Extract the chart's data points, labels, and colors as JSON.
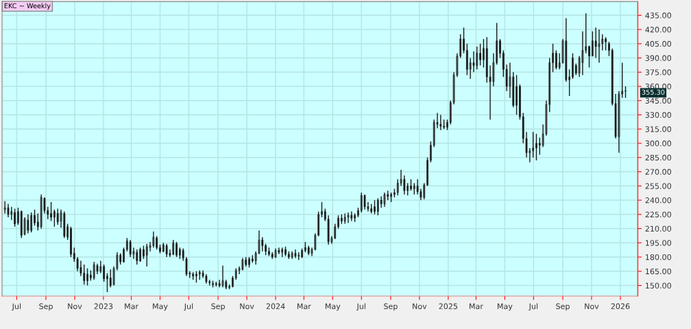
{
  "chart_data": {
    "type": "candlestick",
    "title": "EKC ~ Weekly",
    "x": [
      "2022-06-06",
      "2022-06-13",
      "2022-06-20",
      "2022-06-27",
      "2022-07-04",
      "2022-07-11",
      "2022-07-18",
      "2022-07-25",
      "2022-08-01",
      "2022-08-08",
      "2022-08-15",
      "2022-08-22",
      "2022-08-29",
      "2022-09-05",
      "2022-09-12",
      "2022-09-19",
      "2022-09-26",
      "2022-10-03",
      "2022-10-10",
      "2022-10-17",
      "2022-10-24",
      "2022-10-31",
      "2022-11-07",
      "2022-11-14",
      "2022-11-21",
      "2022-11-28",
      "2022-12-05",
      "2022-12-12",
      "2022-12-19",
      "2022-12-26",
      "2023-01-02",
      "2023-01-09",
      "2023-01-16",
      "2023-01-23",
      "2023-01-30",
      "2023-02-06",
      "2023-02-13",
      "2023-02-20",
      "2023-02-27",
      "2023-03-06",
      "2023-03-13",
      "2023-03-20",
      "2023-03-27",
      "2023-04-03",
      "2023-04-10",
      "2023-04-17",
      "2023-04-24",
      "2023-05-01",
      "2023-05-08",
      "2023-05-15",
      "2023-05-22",
      "2023-05-29",
      "2023-06-05",
      "2023-06-12",
      "2023-06-19",
      "2023-06-26",
      "2023-07-03",
      "2023-07-10",
      "2023-07-17",
      "2023-07-24",
      "2023-07-31",
      "2023-08-07",
      "2023-08-14",
      "2023-08-21",
      "2023-08-28",
      "2023-09-04",
      "2023-09-11",
      "2023-09-18",
      "2023-09-25",
      "2023-10-02",
      "2023-10-09",
      "2023-10-16",
      "2023-10-23",
      "2023-10-30",
      "2023-11-06",
      "2023-11-13",
      "2023-11-20",
      "2023-11-27",
      "2023-12-04",
      "2023-12-11",
      "2023-12-18",
      "2023-12-25",
      "2024-01-01",
      "2024-01-08",
      "2024-01-15",
      "2024-01-22",
      "2024-01-29",
      "2024-02-05",
      "2024-02-12",
      "2024-02-19",
      "2024-02-26",
      "2024-03-04",
      "2024-03-11",
      "2024-03-18",
      "2024-03-25",
      "2024-04-01",
      "2024-04-08",
      "2024-04-15",
      "2024-04-22",
      "2024-04-29",
      "2024-05-06",
      "2024-05-13",
      "2024-05-20",
      "2024-05-27",
      "2024-06-03",
      "2024-06-10",
      "2024-06-17",
      "2024-06-24",
      "2024-07-01",
      "2024-07-08",
      "2024-07-15",
      "2024-07-22",
      "2024-07-29",
      "2024-08-05",
      "2024-08-12",
      "2024-08-19",
      "2024-08-26",
      "2024-09-02",
      "2024-09-09",
      "2024-09-16",
      "2024-09-23",
      "2024-09-30",
      "2024-10-07",
      "2024-10-14",
      "2024-10-21",
      "2024-10-28",
      "2024-11-04",
      "2024-11-11",
      "2024-11-18",
      "2024-11-25",
      "2024-12-02",
      "2024-12-09",
      "2024-12-16",
      "2024-12-23",
      "2024-12-30",
      "2025-01-06",
      "2025-01-13",
      "2025-01-20",
      "2025-01-27",
      "2025-02-03",
      "2025-02-10",
      "2025-02-17",
      "2025-02-24",
      "2025-03-03",
      "2025-03-10",
      "2025-03-17",
      "2025-03-24",
      "2025-03-31",
      "2025-04-07",
      "2025-04-14",
      "2025-04-21",
      "2025-04-28",
      "2025-05-05",
      "2025-05-12",
      "2025-05-19",
      "2025-05-26",
      "2025-06-02",
      "2025-06-09",
      "2025-06-16",
      "2025-06-23",
      "2025-06-30",
      "2025-07-07",
      "2025-07-14",
      "2025-07-21",
      "2025-07-28",
      "2025-08-04",
      "2025-08-11",
      "2025-08-18",
      "2025-08-25",
      "2025-09-01",
      "2025-09-08",
      "2025-09-15",
      "2025-09-22",
      "2025-09-29",
      "2025-10-06",
      "2025-10-13",
      "2025-10-20",
      "2025-10-27",
      "2025-11-03",
      "2025-11-10",
      "2025-11-17",
      "2025-11-24",
      "2025-12-01",
      "2025-12-08",
      "2025-12-15",
      "2025-12-22",
      "2025-12-29",
      "2026-01-05",
      "2026-01-12"
    ],
    "ohlc": [
      [
        230,
        239,
        226,
        232
      ],
      [
        232,
        236,
        222,
        225
      ],
      [
        225,
        233,
        219,
        228
      ],
      [
        227,
        231,
        212,
        215
      ],
      [
        216,
        232,
        214,
        228
      ],
      [
        228,
        229,
        200,
        203
      ],
      [
        204,
        222,
        203,
        220
      ],
      [
        219,
        225,
        205,
        208
      ],
      [
        208,
        227,
        206,
        224
      ],
      [
        224,
        230,
        213,
        216
      ],
      [
        217,
        226,
        208,
        212
      ],
      [
        212,
        246,
        210,
        243
      ],
      [
        242,
        243,
        226,
        229
      ],
      [
        229,
        233,
        220,
        225
      ],
      [
        226,
        238,
        218,
        222
      ],
      [
        222,
        230,
        212,
        228
      ],
      [
        226,
        231,
        214,
        217
      ],
      [
        218,
        230,
        211,
        227
      ],
      [
        226,
        228,
        200,
        202
      ],
      [
        201,
        215,
        198,
        212
      ],
      [
        210,
        212,
        180,
        183
      ],
      [
        184,
        190,
        175,
        178
      ],
      [
        178,
        180,
        165,
        168
      ],
      [
        169,
        176,
        160,
        163
      ],
      [
        163,
        172,
        151,
        155
      ],
      [
        155,
        168,
        150,
        162
      ],
      [
        161,
        166,
        155,
        158
      ],
      [
        158,
        175,
        156,
        172
      ],
      [
        171,
        173,
        162,
        165
      ],
      [
        165,
        176,
        163,
        170
      ],
      [
        170,
        172,
        154,
        157
      ],
      [
        157,
        163,
        143,
        160
      ],
      [
        158,
        167,
        148,
        150
      ],
      [
        151,
        170,
        150,
        168
      ],
      [
        168,
        185,
        166,
        182
      ],
      [
        182,
        184,
        172,
        175
      ],
      [
        175,
        190,
        174,
        188
      ],
      [
        188,
        200,
        186,
        197
      ],
      [
        196,
        198,
        180,
        183
      ],
      [
        183,
        190,
        178,
        186
      ],
      [
        185,
        188,
        172,
        176
      ],
      [
        176,
        190,
        175,
        188
      ],
      [
        188,
        192,
        178,
        181
      ],
      [
        182,
        194,
        170,
        191
      ],
      [
        190,
        196,
        186,
        192
      ],
      [
        192,
        207,
        190,
        201
      ],
      [
        200,
        202,
        188,
        190
      ],
      [
        190,
        193,
        184,
        186
      ],
      [
        186,
        195,
        185,
        193
      ],
      [
        192,
        194,
        180,
        183
      ],
      [
        184,
        188,
        180,
        182
      ],
      [
        183,
        198,
        182,
        195
      ],
      [
        194,
        196,
        180,
        182
      ],
      [
        182,
        190,
        178,
        188
      ],
      [
        187,
        189,
        176,
        179
      ],
      [
        178,
        180,
        160,
        162
      ],
      [
        162,
        165,
        158,
        163
      ],
      [
        162,
        164,
        156,
        160
      ],
      [
        160,
        165,
        153,
        162
      ],
      [
        162,
        166,
        156,
        164
      ],
      [
        163,
        166,
        158,
        160
      ],
      [
        160,
        162,
        152,
        154
      ],
      [
        154,
        156,
        150,
        153
      ],
      [
        152,
        155,
        148,
        151
      ],
      [
        151,
        154,
        149,
        152
      ],
      [
        152,
        156,
        148,
        150
      ],
      [
        150,
        171,
        148,
        155
      ],
      [
        154,
        156,
        146,
        148
      ],
      [
        148,
        151,
        146,
        149
      ],
      [
        149,
        160,
        148,
        158
      ],
      [
        158,
        168,
        156,
        166
      ],
      [
        166,
        170,
        162,
        168
      ],
      [
        167,
        179,
        166,
        177
      ],
      [
        177,
        180,
        170,
        172
      ],
      [
        172,
        180,
        169,
        178
      ],
      [
        178,
        182,
        174,
        176
      ],
      [
        176,
        186,
        172,
        184
      ],
      [
        184,
        208,
        183,
        198
      ],
      [
        198,
        201,
        186,
        192
      ],
      [
        192,
        194,
        182,
        186
      ],
      [
        186,
        190,
        181,
        183
      ],
      [
        183,
        185,
        178,
        180
      ],
      [
        180,
        189,
        179,
        187
      ],
      [
        187,
        190,
        183,
        185
      ],
      [
        185,
        190,
        180,
        188
      ],
      [
        188,
        191,
        181,
        183
      ],
      [
        183,
        186,
        178,
        180
      ],
      [
        180,
        186,
        178,
        184
      ],
      [
        184,
        188,
        179,
        181
      ],
      [
        181,
        185,
        177,
        182
      ],
      [
        180,
        189,
        179,
        187
      ],
      [
        187,
        196,
        185,
        190
      ],
      [
        190,
        192,
        182,
        184
      ],
      [
        184,
        190,
        181,
        188
      ],
      [
        188,
        205,
        187,
        203
      ],
      [
        203,
        228,
        202,
        225
      ],
      [
        225,
        238,
        222,
        228
      ],
      [
        228,
        231,
        218,
        220
      ],
      [
        220,
        224,
        193,
        196
      ],
      [
        196,
        202,
        194,
        200
      ],
      [
        200,
        215,
        199,
        212
      ],
      [
        212,
        224,
        210,
        221
      ],
      [
        221,
        225,
        215,
        218
      ],
      [
        218,
        226,
        215,
        222
      ],
      [
        222,
        227,
        216,
        224
      ],
      [
        224,
        228,
        218,
        221
      ],
      [
        221,
        226,
        217,
        224
      ],
      [
        224,
        232,
        222,
        229
      ],
      [
        229,
        248,
        227,
        245
      ],
      [
        245,
        246,
        230,
        233
      ],
      [
        233,
        238,
        228,
        231
      ],
      [
        231,
        236,
        226,
        228
      ],
      [
        233,
        240,
        225,
        228
      ],
      [
        228,
        242,
        224,
        240
      ],
      [
        240,
        244,
        232,
        236
      ],
      [
        236,
        248,
        233,
        246
      ],
      [
        246,
        250,
        240,
        244
      ],
      [
        244,
        248,
        238,
        246
      ],
      [
        246,
        252,
        243,
        248
      ],
      [
        248,
        262,
        245,
        258
      ],
      [
        258,
        272,
        255,
        262
      ],
      [
        262,
        266,
        246,
        250
      ],
      [
        250,
        258,
        245,
        255
      ],
      [
        255,
        262,
        250,
        252
      ],
      [
        252,
        258,
        246,
        255
      ],
      [
        255,
        262,
        246,
        249
      ],
      [
        249,
        252,
        240,
        243
      ],
      [
        243,
        258,
        241,
        256
      ],
      [
        256,
        285,
        255,
        282
      ],
      [
        282,
        302,
        280,
        298
      ],
      [
        298,
        325,
        296,
        322
      ],
      [
        322,
        332,
        316,
        320
      ],
      [
        320,
        330,
        314,
        318
      ],
      [
        318,
        325,
        315,
        317
      ],
      [
        317,
        325,
        314,
        322
      ],
      [
        322,
        345,
        320,
        343
      ],
      [
        343,
        375,
        341,
        372
      ],
      [
        372,
        395,
        370,
        392
      ],
      [
        392,
        415,
        390,
        410
      ],
      [
        410,
        422,
        395,
        398
      ],
      [
        398,
        405,
        372,
        378
      ],
      [
        378,
        390,
        368,
        385
      ],
      [
        385,
        397,
        375,
        382
      ],
      [
        382,
        402,
        378,
        395
      ],
      [
        395,
        405,
        382,
        388
      ],
      [
        388,
        410,
        380,
        400
      ],
      [
        400,
        412,
        364,
        370
      ],
      [
        370,
        382,
        325,
        365
      ],
      [
        365,
        395,
        360,
        385
      ],
      [
        385,
        427,
        383,
        408
      ],
      [
        408,
        410,
        390,
        395
      ],
      [
        395,
        398,
        370,
        378
      ],
      [
        378,
        383,
        355,
        360
      ],
      [
        360,
        385,
        348,
        370
      ],
      [
        370,
        375,
        338,
        340
      ],
      [
        340,
        372,
        330,
        360
      ],
      [
        360,
        362,
        325,
        328
      ],
      [
        328,
        332,
        300,
        305
      ],
      [
        305,
        312,
        285,
        290
      ],
      [
        290,
        295,
        280,
        292
      ],
      [
        292,
        312,
        285,
        295
      ],
      [
        295,
        310,
        282,
        300
      ],
      [
        300,
        306,
        288,
        298
      ],
      [
        298,
        320,
        296,
        310
      ],
      [
        310,
        345,
        308,
        341
      ],
      [
        341,
        390,
        333,
        385
      ],
      [
        385,
        405,
        375,
        395
      ],
      [
        395,
        398,
        378,
        380
      ],
      [
        380,
        395,
        378,
        385
      ],
      [
        385,
        410,
        384,
        408
      ],
      [
        408,
        432,
        365,
        367
      ],
      [
        367,
        378,
        350,
        370
      ],
      [
        370,
        395,
        368,
        390
      ],
      [
        382,
        384,
        372,
        374
      ],
      [
        374,
        392,
        370,
        390
      ],
      [
        385,
        418,
        372,
        398
      ],
      [
        398,
        437,
        395,
        402
      ],
      [
        402,
        403,
        380,
        392
      ],
      [
        392,
        418,
        392,
        408
      ],
      [
        408,
        422,
        390,
        402
      ],
      [
        402,
        420,
        385,
        405
      ],
      [
        405,
        415,
        398,
        410
      ],
      [
        410,
        412,
        398,
        407
      ],
      [
        405,
        407,
        392,
        398
      ],
      [
        398,
        400,
        340,
        342
      ],
      [
        342,
        352,
        305,
        307
      ],
      [
        307,
        355,
        290,
        352
      ],
      [
        352,
        385,
        348,
        355
      ],
      [
        355,
        360,
        348,
        355.3
      ]
    ],
    "color": "#1a1a1a",
    "xlim": [
      "2022-05-31",
      "2026-02-07"
    ],
    "xticks": [
      {
        "value": "2022-07-01",
        "label": "Jul"
      },
      {
        "value": "2022-09-01",
        "label": "Sep"
      },
      {
        "value": "2022-11-01",
        "label": "Nov"
      },
      {
        "value": "2023-01-01",
        "label": "2023"
      },
      {
        "value": "2023-03-01",
        "label": "Mar"
      },
      {
        "value": "2023-05-01",
        "label": "May"
      },
      {
        "value": "2023-07-01",
        "label": "Jul"
      },
      {
        "value": "2023-09-01",
        "label": "Sep"
      },
      {
        "value": "2023-11-01",
        "label": "Nov"
      },
      {
        "value": "2024-01-01",
        "label": "2024"
      },
      {
        "value": "2024-03-01",
        "label": "Mar"
      },
      {
        "value": "2024-05-01",
        "label": "May"
      },
      {
        "value": "2024-07-01",
        "label": "Jul"
      },
      {
        "value": "2024-09-01",
        "label": "Sep"
      },
      {
        "value": "2024-11-01",
        "label": "Nov"
      },
      {
        "value": "2025-01-01",
        "label": "2025"
      },
      {
        "value": "2025-03-01",
        "label": "Mar"
      },
      {
        "value": "2025-05-01",
        "label": "May"
      },
      {
        "value": "2025-07-01",
        "label": "Jul"
      },
      {
        "value": "2025-09-01",
        "label": "Sep"
      },
      {
        "value": "2025-11-01",
        "label": "Nov"
      },
      {
        "value": "2026-01-01",
        "label": "2026"
      }
    ],
    "ylim": [
      138.8,
      449.4
    ],
    "yticks": [
      {
        "value": 150,
        "label": "150.00"
      },
      {
        "value": 165,
        "label": "165.00"
      },
      {
        "value": 180,
        "label": "180.00"
      },
      {
        "value": 195,
        "label": "195.00"
      },
      {
        "value": 210,
        "label": "210.00"
      },
      {
        "value": 225,
        "label": "225.00"
      },
      {
        "value": 240,
        "label": "240.00"
      },
      {
        "value": 255,
        "label": "255.00"
      },
      {
        "value": 270,
        "label": "270.00"
      },
      {
        "value": 285,
        "label": "285.00"
      },
      {
        "value": 300,
        "label": "300.00"
      },
      {
        "value": 315,
        "label": "315.00"
      },
      {
        "value": 330,
        "label": "330.00"
      },
      {
        "value": 345,
        "label": "345.00"
      },
      {
        "value": 360,
        "label": "360.00"
      },
      {
        "value": 375,
        "label": "375.00"
      },
      {
        "value": 390,
        "label": "390.00"
      },
      {
        "value": 405,
        "label": "405.00"
      },
      {
        "value": 420,
        "label": "420.00"
      },
      {
        "value": 435,
        "label": "435.00"
      }
    ],
    "annotations": [
      "355.30"
    ],
    "grid": true,
    "legend": false
  }
}
